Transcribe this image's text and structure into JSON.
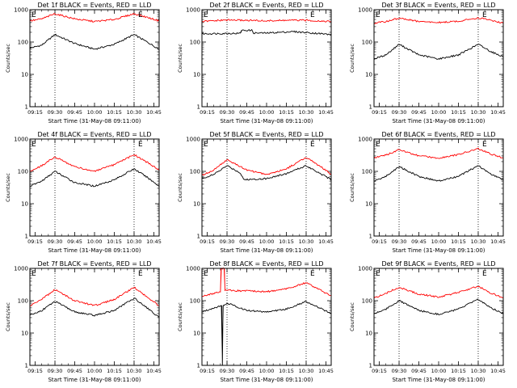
{
  "figure": {
    "shared": {
      "xlabel": "Start Time (31-May-08 09:11:00)",
      "ylabel": "Counts/sec",
      "x_ticks": [
        "09:15",
        "09:30",
        "09:45",
        "10:00",
        "10:15",
        "10:30",
        "10:45"
      ],
      "y_ticks": [
        "1",
        "10",
        "100",
        "1000"
      ],
      "corner_label": "E",
      "line_colors": {
        "events": "#000000",
        "lld": "#ff0000"
      }
    }
  },
  "chart_data": [
    {
      "type": "line",
      "title": "Det 1f BLACK = Events, RED = LLD",
      "xlabel": "Start Time (31-May-08 09:11:00)",
      "ylabel": "Counts/sec",
      "x_ticks": [
        "09:15",
        "09:30",
        "09:45",
        "10:00",
        "10:15",
        "10:30",
        "10:45"
      ],
      "y_ticks": [
        "1",
        "10",
        "100",
        "1000"
      ],
      "y_scale": "log",
      "xlim": [
        "09:11",
        "10:49"
      ],
      "ylim": [
        1,
        1000
      ],
      "vlines": [
        "09:30",
        "10:30"
      ],
      "series": [
        {
          "name": "Events",
          "color": "#000000",
          "x": [
            "09:11",
            "09:20",
            "09:30",
            "09:45",
            "10:00",
            "10:15",
            "10:30",
            "10:40",
            "10:49"
          ],
          "values": [
            65,
            80,
            170,
            90,
            60,
            85,
            170,
            100,
            60
          ]
        },
        {
          "name": "LLD",
          "color": "#ff0000",
          "x": [
            "09:11",
            "09:20",
            "09:30",
            "09:45",
            "10:00",
            "10:15",
            "10:30",
            "10:40",
            "10:49"
          ],
          "values": [
            450,
            520,
            750,
            520,
            430,
            500,
            750,
            580,
            450
          ]
        }
      ]
    },
    {
      "type": "line",
      "title": "Det 2f BLACK = Events, RED = LLD",
      "xlabel": "Start Time (31-May-08 09:11:00)",
      "ylabel": "Counts/sec",
      "x_ticks": [
        "09:15",
        "09:30",
        "09:45",
        "10:00",
        "10:15",
        "10:30",
        "10:45"
      ],
      "y_ticks": [
        "1",
        "10",
        "100",
        "1000"
      ],
      "y_scale": "log",
      "xlim": [
        "09:11",
        "10:49"
      ],
      "ylim": [
        1,
        1000
      ],
      "vlines": [
        "09:30",
        "10:30"
      ],
      "series": [
        {
          "name": "Events",
          "color": "#000000",
          "x": [
            "09:11",
            "09:30",
            "09:40",
            "09:41",
            "09:49",
            "09:50",
            "10:00",
            "10:20",
            "10:35",
            "10:49"
          ],
          "values": [
            180,
            185,
            185,
            230,
            230,
            190,
            190,
            210,
            190,
            170
          ]
        },
        {
          "name": "LLD",
          "color": "#ff0000",
          "x": [
            "09:11",
            "09:30",
            "09:45",
            "10:00",
            "10:15",
            "10:30",
            "10:49"
          ],
          "values": [
            430,
            480,
            470,
            450,
            470,
            470,
            430
          ]
        }
      ]
    },
    {
      "type": "line",
      "title": "Det 3f BLACK = Events, RED = LLD",
      "xlabel": "Start Time (31-May-08 09:11:00)",
      "ylabel": "Counts/sec",
      "x_ticks": [
        "09:15",
        "09:30",
        "09:45",
        "10:00",
        "10:15",
        "10:30",
        "10:45"
      ],
      "y_ticks": [
        "1",
        "10",
        "100",
        "1000"
      ],
      "y_scale": "log",
      "xlim": [
        "09:11",
        "10:49"
      ],
      "ylim": [
        1,
        1000
      ],
      "vlines": [
        "09:30",
        "10:30"
      ],
      "series": [
        {
          "name": "Events",
          "color": "#000000",
          "x": [
            "09:11",
            "09:20",
            "09:30",
            "09:45",
            "10:00",
            "10:15",
            "10:30",
            "10:40",
            "10:49"
          ],
          "values": [
            30,
            40,
            85,
            40,
            30,
            40,
            85,
            50,
            35
          ]
        },
        {
          "name": "LLD",
          "color": "#ff0000",
          "x": [
            "09:11",
            "09:20",
            "09:30",
            "09:45",
            "10:00",
            "10:15",
            "10:30",
            "10:40",
            "10:49"
          ],
          "values": [
            380,
            430,
            550,
            430,
            400,
            440,
            560,
            470,
            380
          ]
        }
      ]
    },
    {
      "type": "line",
      "title": "Det 4f BLACK = Events, RED = LLD",
      "xlabel": "Start Time (31-May-08 09:11:00)",
      "ylabel": "Counts/sec",
      "x_ticks": [
        "09:15",
        "09:30",
        "09:45",
        "10:00",
        "10:15",
        "10:30",
        "10:45"
      ],
      "y_ticks": [
        "1",
        "10",
        "100",
        "1000"
      ],
      "y_scale": "log",
      "xlim": [
        "09:11",
        "10:49"
      ],
      "ylim": [
        1,
        1000
      ],
      "vlines": [
        "09:30",
        "10:30"
      ],
      "series": [
        {
          "name": "Events",
          "color": "#000000",
          "x": [
            "09:11",
            "09:20",
            "09:30",
            "09:45",
            "10:00",
            "10:15",
            "10:30",
            "10:40",
            "10:49"
          ],
          "values": [
            35,
            50,
            100,
            45,
            35,
            55,
            120,
            65,
            35
          ]
        },
        {
          "name": "LLD",
          "color": "#ff0000",
          "x": [
            "09:11",
            "09:20",
            "09:30",
            "09:45",
            "10:00",
            "10:15",
            "10:30",
            "10:40",
            "10:49"
          ],
          "values": [
            100,
            150,
            280,
            140,
            100,
            160,
            330,
            190,
            110
          ]
        }
      ]
    },
    {
      "type": "line",
      "title": "Det 5f BLACK = Events, RED = LLD",
      "xlabel": "Start Time (31-May-08 09:11:00)",
      "ylabel": "Counts/sec",
      "x_ticks": [
        "09:15",
        "09:30",
        "09:45",
        "10:00",
        "10:15",
        "10:30",
        "10:45"
      ],
      "y_ticks": [
        "1",
        "10",
        "100",
        "1000"
      ],
      "y_scale": "log",
      "xlim": [
        "09:11",
        "10:49"
      ],
      "ylim": [
        1,
        1000
      ],
      "vlines": [
        "09:30",
        "10:30"
      ],
      "series": [
        {
          "name": "Events",
          "color": "#000000",
          "x": [
            "09:11",
            "09:20",
            "09:30",
            "09:40",
            "09:43",
            "10:00",
            "10:15",
            "10:30",
            "10:40",
            "10:49"
          ],
          "values": [
            60,
            80,
            150,
            90,
            55,
            60,
            85,
            150,
            90,
            55
          ]
        },
        {
          "name": "LLD",
          "color": "#ff0000",
          "x": [
            "09:11",
            "09:20",
            "09:30",
            "09:45",
            "10:00",
            "10:15",
            "10:30",
            "10:40",
            "10:49"
          ],
          "values": [
            75,
            110,
            230,
            110,
            80,
            120,
            270,
            150,
            80
          ]
        }
      ]
    },
    {
      "type": "line",
      "title": "Det 6f BLACK = Events, RED = LLD",
      "xlabel": "Start Time (31-May-08 09:11:00)",
      "ylabel": "Counts/sec",
      "x_ticks": [
        "09:15",
        "09:30",
        "09:45",
        "10:00",
        "10:15",
        "10:30",
        "10:45"
      ],
      "y_ticks": [
        "1",
        "10",
        "100",
        "1000"
      ],
      "y_scale": "log",
      "xlim": [
        "09:11",
        "10:49"
      ],
      "ylim": [
        1,
        1000
      ],
      "vlines": [
        "09:30",
        "10:30"
      ],
      "series": [
        {
          "name": "Events",
          "color": "#000000",
          "x": [
            "09:11",
            "09:20",
            "09:30",
            "09:45",
            "10:00",
            "10:15",
            "10:30",
            "10:40",
            "10:49"
          ],
          "values": [
            50,
            70,
            140,
            70,
            50,
            70,
            150,
            80,
            55
          ]
        },
        {
          "name": "LLD",
          "color": "#ff0000",
          "x": [
            "09:11",
            "09:20",
            "09:30",
            "09:45",
            "10:00",
            "10:15",
            "10:30",
            "10:40",
            "10:49"
          ],
          "values": [
            260,
            320,
            470,
            300,
            260,
            330,
            500,
            340,
            260
          ]
        }
      ]
    },
    {
      "type": "line",
      "title": "Det 7f BLACK = Events, RED = LLD",
      "xlabel": "Start Time (31-May-08 09:11:00)",
      "ylabel": "Counts/sec",
      "x_ticks": [
        "09:15",
        "09:30",
        "09:45",
        "10:00",
        "10:15",
        "10:30",
        "10:45"
      ],
      "y_ticks": [
        "1",
        "10",
        "100",
        "1000"
      ],
      "y_scale": "log",
      "xlim": [
        "09:11",
        "10:49"
      ],
      "ylim": [
        1,
        1000
      ],
      "vlines": [
        "09:30",
        "10:30"
      ],
      "series": [
        {
          "name": "Events",
          "color": "#000000",
          "x": [
            "09:11",
            "09:20",
            "09:30",
            "09:45",
            "10:00",
            "10:15",
            "10:30",
            "10:40",
            "10:49"
          ],
          "values": [
            35,
            50,
            95,
            45,
            35,
            50,
            120,
            60,
            30
          ]
        },
        {
          "name": "LLD",
          "color": "#ff0000",
          "x": [
            "09:11",
            "09:20",
            "09:30",
            "09:45",
            "10:00",
            "10:15",
            "10:30",
            "10:40",
            "10:49"
          ],
          "values": [
            70,
            110,
            220,
            100,
            70,
            110,
            260,
            130,
            70
          ]
        }
      ]
    },
    {
      "type": "line",
      "title": "Det 8f BLACK = Events, RED = LLD",
      "xlabel": "Start Time (31-May-08 09:11:00)",
      "ylabel": "Counts/sec",
      "x_ticks": [
        "09:15",
        "09:30",
        "09:45",
        "10:00",
        "10:15",
        "10:30",
        "10:45"
      ],
      "y_ticks": [
        "1",
        "10",
        "100",
        "1000"
      ],
      "y_scale": "log",
      "xlim": [
        "09:11",
        "10:49"
      ],
      "ylim": [
        1,
        1000
      ],
      "vlines": [
        "09:30",
        "10:30"
      ],
      "series": [
        {
          "name": "Events",
          "color": "#000000",
          "x": [
            "09:11",
            "09:20",
            "09:26",
            "09:26.5",
            "09:27",
            "09:28",
            "09:30",
            "09:45",
            "10:00",
            "10:15",
            "10:30",
            "10:40",
            "10:49"
          ],
          "values": [
            45,
            60,
            70,
            1,
            70,
            75,
            85,
            50,
            45,
            55,
            95,
            60,
            40
          ]
        },
        {
          "name": "LLD",
          "color": "#ff0000",
          "x": [
            "09:11",
            "09:20",
            "09:25",
            "09:25.5",
            "09:28",
            "09:28.5",
            "09:30",
            "09:45",
            "10:00",
            "10:15",
            "10:30",
            "10:40",
            "10:49"
          ],
          "values": [
            140,
            170,
            190,
            1000,
            1000,
            200,
            210,
            200,
            190,
            230,
            360,
            220,
            140
          ]
        }
      ]
    },
    {
      "type": "line",
      "title": "Det 9f BLACK = Events, RED = LLD",
      "xlabel": "Start Time (31-May-08 09:11:00)",
      "ylabel": "Counts/sec",
      "x_ticks": [
        "09:15",
        "09:30",
        "09:45",
        "10:00",
        "10:15",
        "10:30",
        "10:45"
      ],
      "y_ticks": [
        "1",
        "10",
        "100",
        "1000"
      ],
      "y_scale": "log",
      "xlim": [
        "09:11",
        "10:49"
      ],
      "ylim": [
        1,
        1000
      ],
      "vlines": [
        "09:30",
        "10:30"
      ],
      "series": [
        {
          "name": "Events",
          "color": "#000000",
          "x": [
            "09:11",
            "09:20",
            "09:30",
            "09:45",
            "10:00",
            "10:15",
            "10:30",
            "10:40",
            "10:49"
          ],
          "values": [
            40,
            55,
            100,
            50,
            38,
            55,
            110,
            60,
            40
          ]
        },
        {
          "name": "LLD",
          "color": "#ff0000",
          "x": [
            "09:11",
            "09:20",
            "09:30",
            "09:45",
            "10:00",
            "10:15",
            "10:30",
            "10:40",
            "10:49"
          ],
          "values": [
            120,
            170,
            260,
            160,
            130,
            180,
            280,
            170,
            120
          ]
        }
      ]
    }
  ]
}
